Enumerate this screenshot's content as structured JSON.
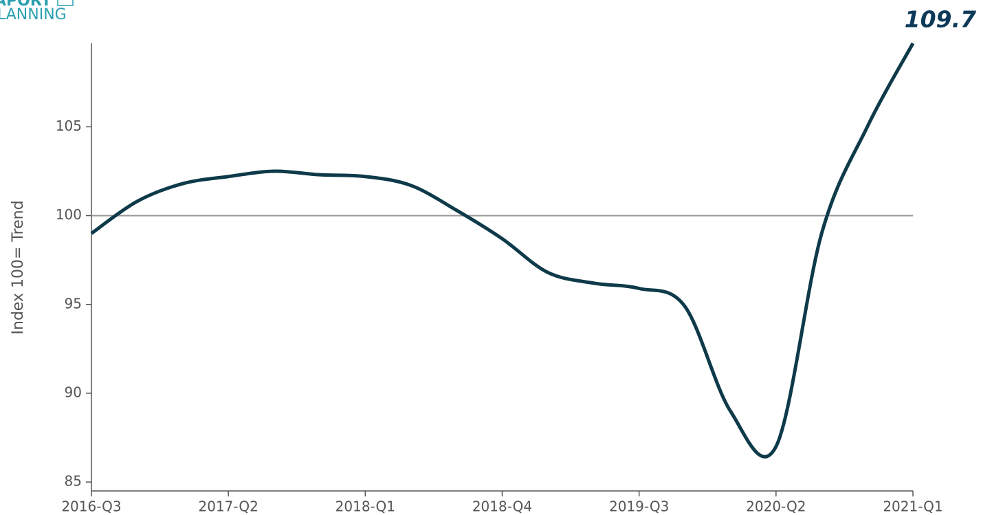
{
  "logo": {
    "line1": "APORT",
    "line2": "LANNING"
  },
  "chart_data": {
    "type": "line",
    "categories": [
      "2016-Q3",
      null,
      null,
      "2017-Q2",
      null,
      null,
      "2018-Q1",
      null,
      null,
      "2018-Q4",
      null,
      null,
      "2019-Q3",
      null,
      null,
      "2020-Q2",
      null,
      null,
      "2021-Q1"
    ],
    "series": [
      {
        "name": "Index",
        "color": "#0e3a4a",
        "values": [
          99.0,
          100.8,
          101.8,
          102.2,
          102.5,
          102.3,
          102.2,
          101.7,
          100.3,
          98.7,
          96.8,
          96.2,
          95.9,
          94.9,
          89.0,
          87.0,
          99.0,
          105.0,
          109.7
        ]
      }
    ],
    "ylabel": "Index 100= Trend",
    "ylim": [
      84.5,
      109.7
    ],
    "yticks": [
      85,
      90,
      95,
      100,
      105
    ],
    "reference_line": 100,
    "annotation": "109.7"
  }
}
